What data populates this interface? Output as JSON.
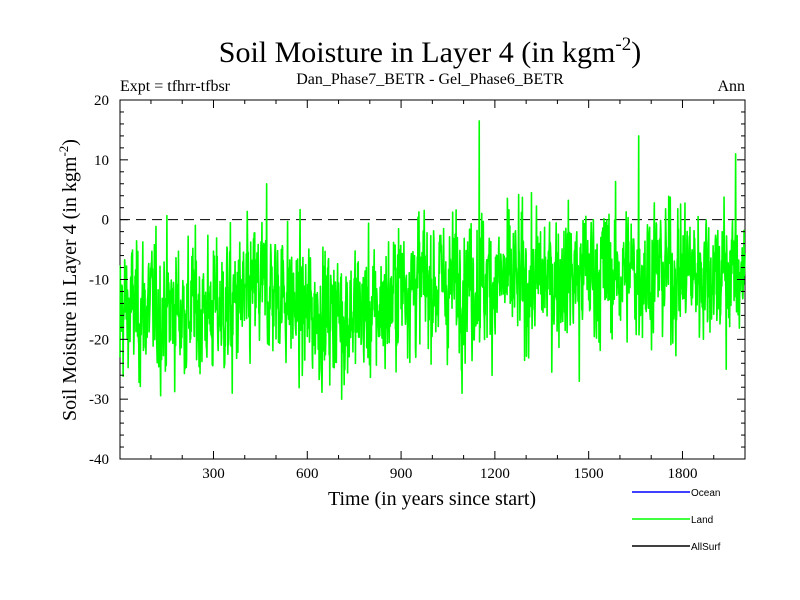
{
  "chart_data": {
    "type": "line",
    "title_main": "Soil Moisture in Layer 4 (in kgm",
    "title_sup": "-2",
    "title_close": ")",
    "subtitle_left": "Expt = tfhrr-tfbsr",
    "subtitle_center": "Dan_Phase7_BETR - Gel_Phase6_BETR",
    "subtitle_right": "Ann",
    "xlabel": "Time (in years since start)",
    "ylabel_main": "Soil Moisture in Layer 4 (in kgm",
    "ylabel_sup": "-2",
    "ylabel_close": ")",
    "xlim": [
      1,
      2000
    ],
    "ylim": [
      -40,
      20
    ],
    "x_ticks": [
      300,
      600,
      900,
      1200,
      1500,
      1800
    ],
    "y_ticks": [
      -40,
      -30,
      -20,
      -10,
      0,
      10,
      20
    ],
    "zero_line": 0,
    "legend": [
      {
        "name": "Ocean",
        "color": "#0000ff"
      },
      {
        "name": "Land",
        "color": "#00ff00"
      },
      {
        "name": "AllSurf",
        "color": "#000000"
      }
    ],
    "series": [
      {
        "name": "Land",
        "color": "#00ff00",
        "n_points": 2000,
        "x_start": 1,
        "x_step": 1,
        "segment_means": [
          {
            "from": 1,
            "to": 420,
            "mean": -15.0
          },
          {
            "from": 420,
            "to": 560,
            "mean": -12.0
          },
          {
            "from": 560,
            "to": 880,
            "mean": -15.5
          },
          {
            "from": 880,
            "to": 1400,
            "mean": -10.5
          },
          {
            "from": 1400,
            "to": 1650,
            "mean": -9.0
          },
          {
            "from": 1650,
            "to": 2000,
            "mean": -8.5
          }
        ],
        "std": 5.5,
        "min": -30.1,
        "max": 16.5,
        "peaks": [
          {
            "x": 1,
            "y": -23
          },
          {
            "x": 360,
            "y": -29
          },
          {
            "x": 470,
            "y": 6
          },
          {
            "x": 710,
            "y": -30
          },
          {
            "x": 1150,
            "y": 16.5
          },
          {
            "x": 1470,
            "y": -27
          },
          {
            "x": 1660,
            "y": 14
          },
          {
            "x": 1940,
            "y": -25
          },
          {
            "x": 1970,
            "y": 11
          }
        ]
      }
    ]
  }
}
